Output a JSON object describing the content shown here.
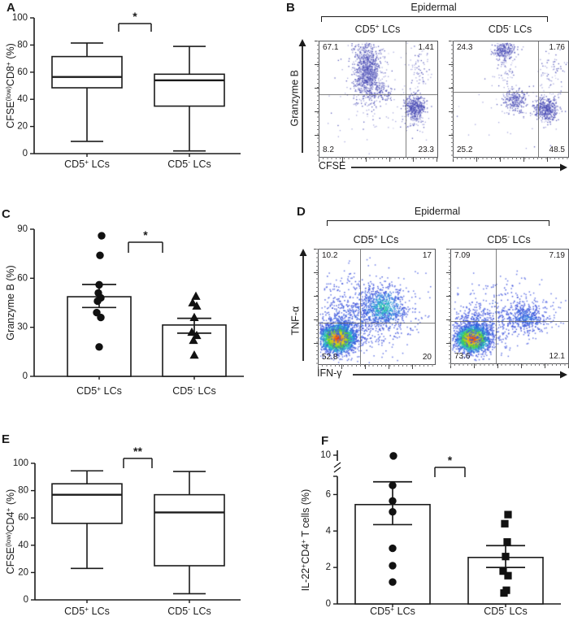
{
  "panels": {
    "A": {
      "letter": "A"
    },
    "B": {
      "letter": "B"
    },
    "C": {
      "letter": "C"
    },
    "D": {
      "letter": "D"
    },
    "E": {
      "letter": "E"
    },
    "F": {
      "letter": "F"
    }
  },
  "chart_data": [
    {
      "panel": "A",
      "type": "box",
      "ylabel": "CFSE(low)CD8+ (%)",
      "ylabel_parts": [
        [
          "CFSE",
          0
        ],
        [
          "(low)",
          1
        ],
        [
          "CD8",
          0
        ],
        [
          "+",
          1
        ],
        [
          " (%)",
          0
        ]
      ],
      "ylim": [
        0,
        100
      ],
      "yticks": [
        0,
        20,
        40,
        60,
        80,
        100
      ],
      "categories": [
        "CD5+ LCs",
        "CD5- LCs"
      ],
      "category_parts": [
        {
          "pre": "CD5",
          "sup": "+",
          "post": " LCs"
        },
        {
          "pre": "CD5",
          "sup": "-",
          "post": " LCs"
        }
      ],
      "boxes": [
        {
          "min": 9,
          "q1": 48.5,
          "median": 56.5,
          "q3": 71.5,
          "max": 81.5
        },
        {
          "min": 2,
          "q1": 35,
          "median": 54,
          "q3": 58.5,
          "max": 79
        }
      ],
      "significance": "*"
    },
    {
      "panel": "B",
      "type": "flow-scatter",
      "group_title": "Epidermal",
      "xlabel": "CFSE",
      "ylabel": "Granzyme B",
      "plots": [
        {
          "title": "CD5+ LCs",
          "title_parts": {
            "pre": "CD5",
            "sup": "+",
            "post": " LCs"
          },
          "quadrants": {
            "ul": "67.1",
            "ur": "1.41",
            "ll": "8.2",
            "lr": "23.3"
          }
        },
        {
          "title": "CD5- LCs",
          "title_parts": {
            "pre": "CD5",
            "sup": "-",
            "post": " LCs"
          },
          "quadrants": {
            "ul": "24.3",
            "ur": "1.76",
            "ll": "25.2",
            "lr": "48.5"
          }
        }
      ]
    },
    {
      "panel": "C",
      "type": "bar-scatter",
      "ylabel": "Granzyme B (%)",
      "ylabel_parts": [
        [
          "Granzyme B (%)",
          0
        ]
      ],
      "ylim": [
        0,
        90
      ],
      "yticks": [
        0,
        30,
        60,
        90
      ],
      "categories": [
        "CD5+ LCs",
        "CD5- LCs"
      ],
      "category_parts": [
        {
          "pre": "CD5",
          "sup": "+",
          "post": " LCs"
        },
        {
          "pre": "CD5",
          "sup": "-",
          "post": " LCs"
        }
      ],
      "bars": [
        {
          "mean": 48.7,
          "sem_low": 42.1,
          "sem_high": 56.2
        },
        {
          "mean": 31.4,
          "sem_low": 26.4,
          "sem_high": 35.5
        }
      ],
      "points": [
        [
          86,
          74,
          56,
          51,
          48,
          46,
          39,
          36,
          18
        ],
        [
          49,
          45,
          43,
          36,
          27,
          25,
          22,
          13
        ]
      ],
      "markers": [
        "circle",
        "triangle"
      ],
      "significance": "*"
    },
    {
      "panel": "D",
      "type": "flow-density",
      "group_title": "Epidermal",
      "xlabel": "IFN-γ",
      "ylabel": "TNF-α",
      "plots": [
        {
          "title": "CD5+ LCs",
          "title_parts": {
            "pre": "CD5",
            "sup": "+",
            "post": " LCs"
          },
          "quadrants": {
            "ul": "10.2",
            "ur": "17",
            "ll": "52.8",
            "lr": "20"
          }
        },
        {
          "title": "CD5- LCs",
          "title_parts": {
            "pre": "CD5",
            "sup": "-",
            "post": " LCs"
          },
          "quadrants": {
            "ul": "7.09",
            "ur": "7.19",
            "ll": "73.6",
            "lr": "12.1"
          }
        }
      ]
    },
    {
      "panel": "E",
      "type": "box",
      "ylabel": "CFSE(low)CD4+ (%)",
      "ylabel_parts": [
        [
          "CFSE",
          0
        ],
        [
          "(low)",
          1
        ],
        [
          "CD4",
          0
        ],
        [
          "+",
          1
        ],
        [
          " (%)",
          0
        ]
      ],
      "ylim": [
        0,
        100
      ],
      "yticks": [
        0,
        20,
        40,
        60,
        80,
        100
      ],
      "categories": [
        "CD5+ LCs",
        "CD5- LCs"
      ],
      "category_parts": [
        {
          "pre": "CD5",
          "sup": "+",
          "post": " LCs"
        },
        {
          "pre": "CD5",
          "sup": "-",
          "post": " LCs"
        }
      ],
      "boxes": [
        {
          "min": 23,
          "q1": 56,
          "median": 77,
          "q3": 85,
          "max": 94.5
        },
        {
          "min": 4.5,
          "q1": 25,
          "median": 64,
          "q3": 77,
          "max": 94
        }
      ],
      "significance": "**"
    },
    {
      "panel": "F",
      "type": "bar-scatter",
      "ylabel": "IL-22+CD4+ T cells (%)",
      "ylabel_parts": [
        [
          "IL-22",
          0
        ],
        [
          "+",
          1
        ],
        [
          "CD4",
          0
        ],
        [
          "+",
          1
        ],
        [
          " T cells (%)",
          0
        ]
      ],
      "ylim": [
        0,
        10
      ],
      "yticks": [
        0,
        2,
        4,
        6
      ],
      "break_tick": 10,
      "break_below": 7,
      "categories": [
        "CD5+ LCs",
        "CD5- LCs"
      ],
      "category_parts": [
        {
          "pre": "CD5",
          "sup": "+",
          "post": " LCs"
        },
        {
          "pre": "CD5",
          "sup": "-",
          "post": " LCs"
        }
      ],
      "bars": [
        {
          "mean": 5.45,
          "sem_low": 4.35,
          "sem_high": 6.7
        },
        {
          "mean": 2.55,
          "sem_low": 2.0,
          "sem_high": 3.2
        }
      ],
      "points": [
        [
          9.9,
          6.5,
          5.65,
          5.05,
          3.05,
          2.1,
          1.2
        ],
        [
          4.9,
          4.4,
          3.4,
          2.6,
          1.8,
          1.55,
          0.75,
          0.6
        ]
      ],
      "markers": [
        "circle",
        "square"
      ],
      "significance": "*"
    }
  ]
}
